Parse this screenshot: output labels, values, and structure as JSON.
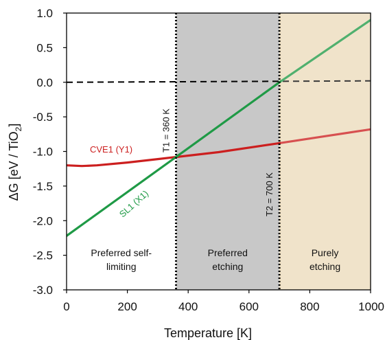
{
  "chart_data": {
    "type": "line",
    "xlabel": "Temperature [K]",
    "ylabel_main": "ΔG [eV / TiO",
    "ylabel_sub": "2",
    "ylabel_tail": "]",
    "xlim": [
      0,
      1000
    ],
    "ylim": [
      -3.0,
      1.0
    ],
    "x_ticks": [
      0,
      200,
      400,
      600,
      800,
      1000
    ],
    "x_tick_labels": [
      "0",
      "200",
      "400",
      "600",
      "800",
      "1000"
    ],
    "y_ticks": [
      1.0,
      0.5,
      0.0,
      -0.5,
      -1.0,
      -1.5,
      -2.0,
      -2.5,
      -3.0
    ],
    "y_tick_labels": [
      "1.0",
      "0.5",
      "0.0",
      "-0.5",
      "-1.0",
      "-1.5",
      "-2.0",
      "-2.5",
      "-3.0"
    ],
    "grid": false,
    "regions": [
      {
        "x0": 0,
        "x1": 360,
        "fill": "#ffffff",
        "label_lines": [
          "Preferred self-",
          "limiting"
        ]
      },
      {
        "x0": 360,
        "x1": 700,
        "fill": "#c8c8c8",
        "label_lines": [
          "Preferred",
          "etching"
        ]
      },
      {
        "x0": 700,
        "x1": 1000,
        "fill": "#ecdcbc",
        "label_lines": [
          "Purely",
          "etching"
        ]
      }
    ],
    "thresholds": [
      {
        "x": 360,
        "label": "T1 = 360 K"
      },
      {
        "x": 700,
        "label": "T2 = 700 K"
      }
    ],
    "zero_line": {
      "y0": 0.0,
      "y1": 0.02
    },
    "series": [
      {
        "name": "CVE1 (Y1)",
        "color": "#cc1f1f",
        "x": [
          0,
          50,
          100,
          200,
          300,
          360,
          500,
          700,
          850,
          1000
        ],
        "y": [
          -1.2,
          -1.21,
          -1.2,
          -1.16,
          -1.11,
          -1.08,
          -1.01,
          -0.88,
          -0.78,
          -0.68
        ]
      },
      {
        "name": "SL1 (X1)",
        "color": "#1f9a46",
        "x": [
          0,
          360,
          700,
          1000
        ],
        "y": [
          -2.22,
          -1.08,
          0.0,
          0.9
        ]
      }
    ]
  }
}
